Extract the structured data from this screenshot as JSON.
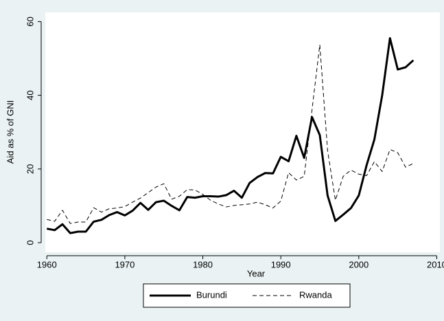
{
  "chart_data": {
    "type": "line",
    "x_label": "Year",
    "y_label": "Aid as % of GNI",
    "x": [
      1960,
      1961,
      1962,
      1963,
      1964,
      1965,
      1966,
      1967,
      1968,
      1969,
      1970,
      1971,
      1972,
      1973,
      1974,
      1975,
      1976,
      1977,
      1978,
      1979,
      1980,
      1981,
      1982,
      1983,
      1984,
      1985,
      1986,
      1987,
      1988,
      1989,
      1990,
      1991,
      1992,
      1993,
      1994,
      1995,
      1996,
      1997,
      1998,
      1999,
      2000,
      2001,
      2002,
      2003,
      2004,
      2005,
      2006,
      2007
    ],
    "series": [
      {
        "name": "Burundi",
        "color": "#000000",
        "style": "solid",
        "linewidth": 3,
        "values": [
          3.8,
          3.4,
          5.0,
          2.6,
          3.0,
          3.0,
          5.7,
          6.2,
          7.5,
          8.3,
          7.4,
          8.7,
          10.8,
          8.9,
          11.0,
          11.4,
          10.0,
          8.8,
          12.4,
          12.2,
          12.6,
          12.6,
          12.5,
          12.9,
          14.1,
          12.2,
          16.2,
          17.8,
          18.9,
          18.8,
          23.3,
          22.1,
          29.0,
          23.0,
          34.1,
          29.2,
          12.8,
          5.9,
          7.6,
          9.4,
          12.8,
          21.0,
          28.0,
          40.0,
          55.5,
          47.0,
          47.6,
          49.5
        ]
      },
      {
        "name": "Rwanda",
        "color": "#000000",
        "style": "dashed",
        "linewidth": 1,
        "values": [
          6.3,
          5.8,
          8.8,
          5.2,
          5.6,
          5.6,
          9.5,
          8.3,
          9.2,
          9.4,
          9.8,
          11.0,
          12.1,
          13.6,
          15.1,
          16.0,
          11.8,
          12.6,
          14.4,
          14.3,
          13.1,
          11.5,
          10.5,
          9.7,
          10.1,
          10.3,
          10.5,
          11.0,
          10.3,
          9.4,
          11.3,
          19.0,
          17.0,
          18.0,
          36.0,
          53.7,
          25.0,
          11.5,
          18.0,
          19.7,
          18.6,
          18.2,
          22.0,
          19.3,
          25.3,
          24.4,
          20.5,
          21.5
        ]
      }
    ],
    "xlim": [
      1959.8,
      2010.4
    ],
    "xticks": [
      1960,
      1970,
      1980,
      1990,
      2000,
      2010
    ],
    "ylim": [
      -2.6,
      62.5
    ],
    "yticks": [
      0,
      20,
      40,
      60
    ],
    "legend": "bottom"
  }
}
